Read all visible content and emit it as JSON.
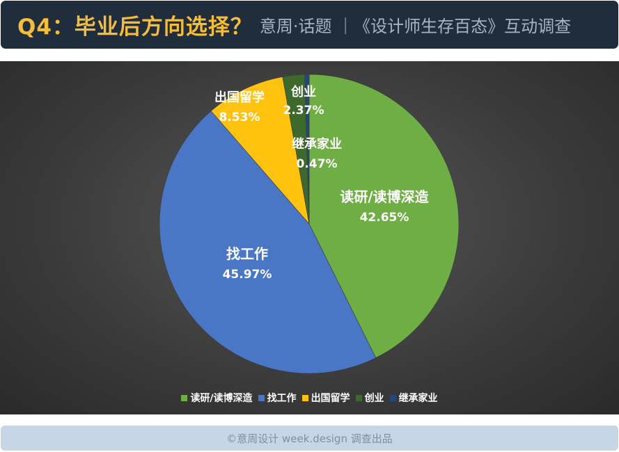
{
  "header": {
    "question": "Q4：毕业后方向选择？",
    "subtitle": "意周·话题 ｜《设计师生存百态》互动调查"
  },
  "chart_data": {
    "type": "pie",
    "start": "top",
    "direction": "clockwise",
    "legend_position": "bottom",
    "slices": [
      {
        "label": "读研/读博深造",
        "value": 42.65,
        "pct_label": "42.65%",
        "color": "#6fae45"
      },
      {
        "label": "找工作",
        "value": 45.97,
        "pct_label": "45.97%",
        "color": "#4a76c6"
      },
      {
        "label": "出国留学",
        "value": 8.53,
        "pct_label": "8.53%",
        "color": "#ffc20e"
      },
      {
        "label": "创业",
        "value": 2.37,
        "pct_label": "2.37%",
        "color": "#3d6a2c"
      },
      {
        "label": "继承家业",
        "value": 0.47,
        "pct_label": "0.47%",
        "color": "#27477c"
      }
    ]
  },
  "footer": {
    "text": "©意周设计 week.design 调查出品"
  }
}
